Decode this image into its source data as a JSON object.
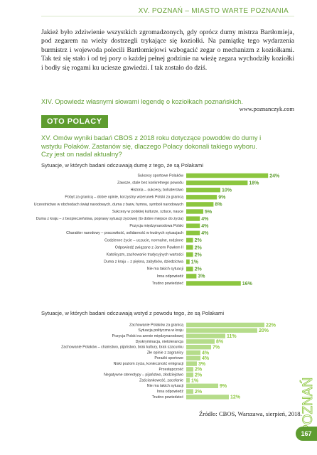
{
  "header": "XV. POZNAŃ – MIASTO WARTE POZNANIA",
  "paragraph": "Jakież było zdziwienie wszystkich zgromadzonych, gdy oprócz dumy mistrza Bartłomieja, pod zegarem na wieży dostrzegli trykające się koziołki. Na pamiątkę tego wydarzenia burmistrz i wojewoda polecili Bartłomiejowi wzbogacić zegar o mechanizm z koziołkami. Tak też się stało i od tej pory o każdej pełnej godzinie na wieżę zegara wychodziły koziołki i bodły się rogami ku uciesze gawiedzi. I tak zostało do dziś.",
  "paragraph_source": "www.poznanczyk.com",
  "task_14": "XIV. Opowiedz własnymi słowami legendę o koziołkach poznańskich.",
  "section": "OTO POLACY",
  "task_15": "XV. Omów wyniki badań CBOS z 2018 roku dotyczące powodów do dumy i wstydu Polaków. Zastanów się, dlaczego Polacy dokonali takiego wyboru. Czy jest on nadal aktualny?",
  "charts": [
    {
      "type": "bar",
      "title": "Sytuacje, w których badani odczuwają dumę z tego, że są Polakami",
      "color": "#8cc63f",
      "categories": [
        "Sukcesy sportowe Polaków",
        "Zawsze, stale bez konkretnego powodu",
        "Historia – sukcesy, bohaterstwo",
        "Pobyt za granicą – dobre opinie, korzystny wizerunek Polski za granicą",
        "Uczestnictwo w obchodach świąt narodowych, duma z barw, hymnu, symboli narodowych",
        "Sukcesy w polskiej kulturze, sztuce, nauce",
        "Duma z kraju – z bezpieczeństwa, poprawy sytuacji życiowej (to dobre miejsce do życia)",
        "Pozycja międzynarodowa Polski",
        "Charakter narodowy – pracowitość, solidarność w trudnych sytuacjach",
        "Codzienne życie – uczucie, normalne, rodzinne",
        "Odpowiedź związane z Janem Pawłem II",
        "Katolicyzm, zachowanie tradycyjnych wartości",
        "Duma z kraju – z piękna, zabytków, dziedzictwa",
        "Nie ma takich sytuacji",
        "Inna odpowiedź",
        "Trudno powiedzieć"
      ],
      "values": [
        24,
        18,
        10,
        9,
        8,
        5,
        4,
        4,
        4,
        2,
        2,
        2,
        1,
        2,
        3,
        16
      ],
      "value_labels": [
        "24%",
        "18%",
        "10%",
        "9%",
        "8%",
        "5%",
        "4%",
        "4%",
        "4%",
        "2%",
        "2%",
        "2%",
        "1%",
        "2%",
        "3%",
        "16%"
      ]
    },
    {
      "type": "bar",
      "title": "Sytuacje, w których badani odczuwają wstyd z powodu tego, że są Polakami",
      "color": "#b5dc8a",
      "categories": [
        "Zachowanie Polaków za granicą",
        "Sytuacja polityczna w kraju",
        "Pozycja Polski na arenie międzynarodowej",
        "Dyskryminacja, nietolerancja",
        "Zachowanie Polaków – chamstwo, pijaństwo, brak kultury, brak szacunku",
        "Złe opinie z zagranicy",
        "Porażki sportowe",
        "Niski poziom życia, konieczność emigracji",
        "Przestępczość",
        "Negatywne stereotypy – pijaństwo, złodziejstwo",
        "Zaściankowość, zacofanie",
        "Nie ma takich sytuacji",
        "Inna odpowiedź",
        "Trudno powiedzieć"
      ],
      "values": [
        22,
        20,
        11,
        8,
        7,
        4,
        4,
        3,
        2,
        2,
        1,
        9,
        2,
        12
      ],
      "value_labels": [
        "22%",
        "20%",
        "11%",
        "8%",
        "7%",
        "4%",
        "4%",
        "3%",
        "2%",
        "2%",
        "1%",
        "9%",
        "2%",
        "12%"
      ]
    }
  ],
  "chart_source": "Źródło: CBOS, Warszawa, sierpień, 2018.",
  "side_label": "POZNAŃ",
  "page_number": "167"
}
